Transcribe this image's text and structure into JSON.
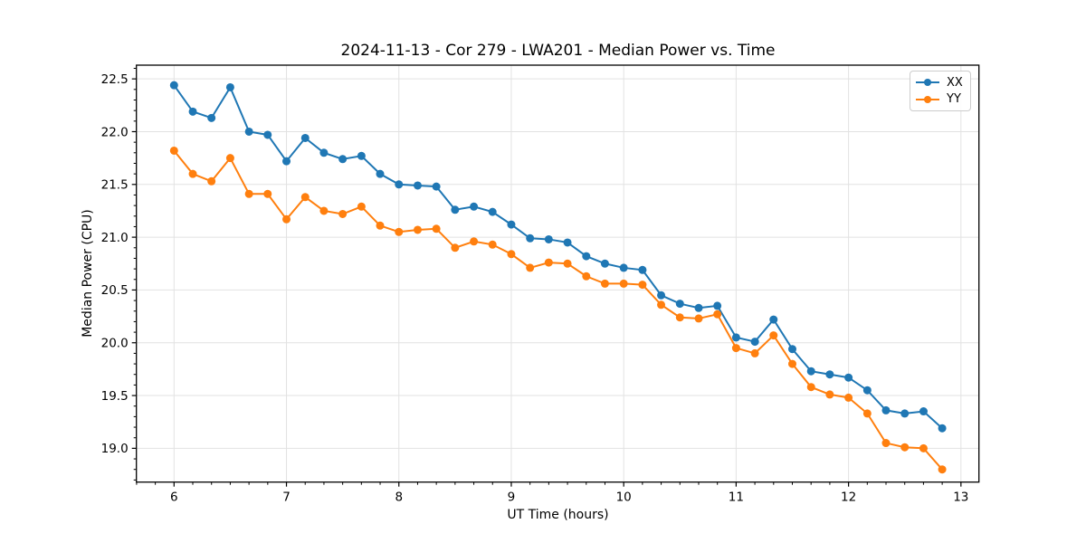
{
  "chart_data": {
    "type": "line",
    "title": "2024-11-13 - Cor 279 - LWA201 - Median Power vs. Time",
    "xlabel": "UT Time (hours)",
    "ylabel": "Median Power (CPU)",
    "xlim": [
      5.665,
      13.16
    ],
    "ylim": [
      18.68,
      22.63
    ],
    "xticks": [
      6,
      7,
      8,
      9,
      10,
      11,
      12,
      13
    ],
    "yticks": [
      19.0,
      19.5,
      20.0,
      20.5,
      21.0,
      21.5,
      22.0,
      22.5
    ],
    "grid": true,
    "grid_color": "#e2e2e2",
    "axis_color": "#000000",
    "legend_position": "upper right",
    "x": [
      6.0,
      6.167,
      6.333,
      6.5,
      6.667,
      6.833,
      7.0,
      7.167,
      7.333,
      7.5,
      7.667,
      7.833,
      8.0,
      8.167,
      8.333,
      8.5,
      8.667,
      8.833,
      9.0,
      9.167,
      9.333,
      9.5,
      9.667,
      9.833,
      10.0,
      10.167,
      10.333,
      10.5,
      10.667,
      10.833,
      11.0,
      11.167,
      11.333,
      11.5,
      11.667,
      11.833,
      12.0,
      12.167,
      12.333,
      12.5,
      12.667,
      12.833
    ],
    "series": [
      {
        "name": "XX",
        "color": "#1f77b4",
        "values": [
          22.44,
          22.19,
          22.13,
          22.42,
          22.0,
          21.97,
          21.72,
          21.94,
          21.8,
          21.74,
          21.77,
          21.6,
          21.5,
          21.49,
          21.48,
          21.26,
          21.29,
          21.24,
          21.12,
          20.99,
          20.98,
          20.95,
          20.82,
          20.75,
          20.71,
          20.69,
          20.45,
          20.37,
          20.33,
          20.35,
          20.05,
          20.01,
          20.22,
          19.94,
          19.73,
          19.7,
          19.67,
          19.55,
          19.36,
          19.33,
          19.35,
          19.19
        ]
      },
      {
        "name": "YY",
        "color": "#ff7f0e",
        "values": [
          21.82,
          21.6,
          21.53,
          21.75,
          21.41,
          21.41,
          21.17,
          21.38,
          21.25,
          21.22,
          21.29,
          21.11,
          21.05,
          21.07,
          21.08,
          20.9,
          20.96,
          20.93,
          20.84,
          20.71,
          20.76,
          20.75,
          20.63,
          20.56,
          20.56,
          20.55,
          20.36,
          20.24,
          20.23,
          20.27,
          19.95,
          19.9,
          20.07,
          19.8,
          19.58,
          19.51,
          19.48,
          19.33,
          19.05,
          19.01,
          19.0,
          18.8
        ]
      }
    ]
  }
}
